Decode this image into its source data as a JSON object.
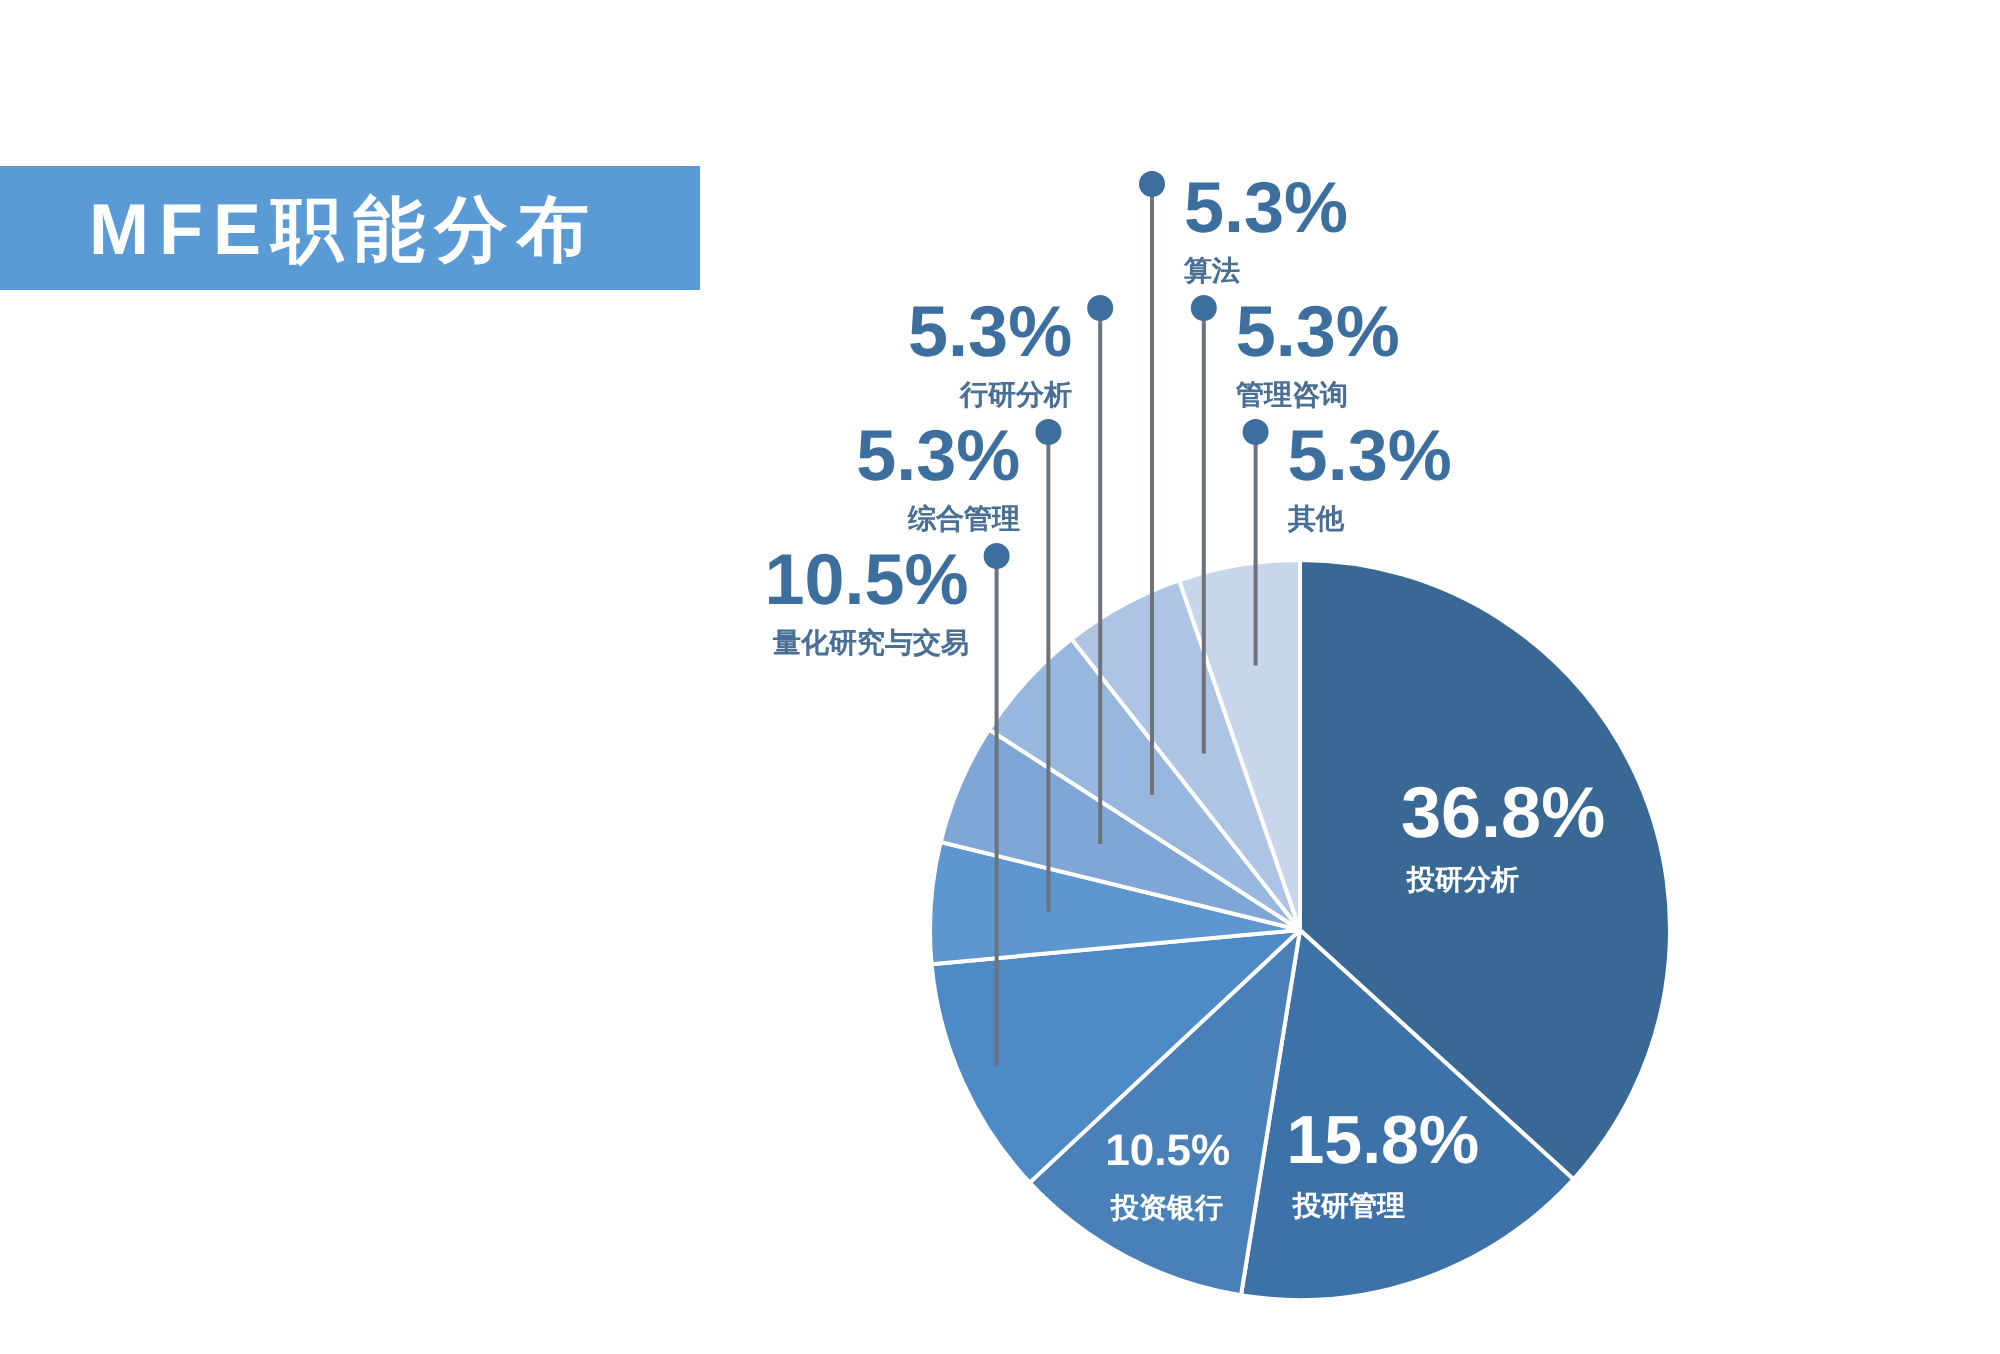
{
  "chart_data": {
    "type": "pie",
    "title": "MFE职能分布",
    "categories": [
      "投研分析",
      "投研管理",
      "投资银行",
      "量化研究与交易",
      "综合管理",
      "行研分析",
      "算法",
      "管理咨询",
      "其他"
    ],
    "values": [
      36.8,
      15.8,
      10.5,
      10.5,
      5.3,
      5.3,
      5.3,
      5.3,
      5.3
    ],
    "value_labels": [
      "36.8%",
      "15.8%",
      "10.5%",
      "10.5%",
      "5.3%",
      "5.3%",
      "5.3%",
      "5.3%",
      "5.3%"
    ],
    "colors": [
      "#3a6894",
      "#3d72a8",
      "#4a80b8",
      "#4d8ac6",
      "#5e96cf",
      "#7fa6d6",
      "#98b7de",
      "#adc4e4",
      "#c7d6eb"
    ]
  }
}
